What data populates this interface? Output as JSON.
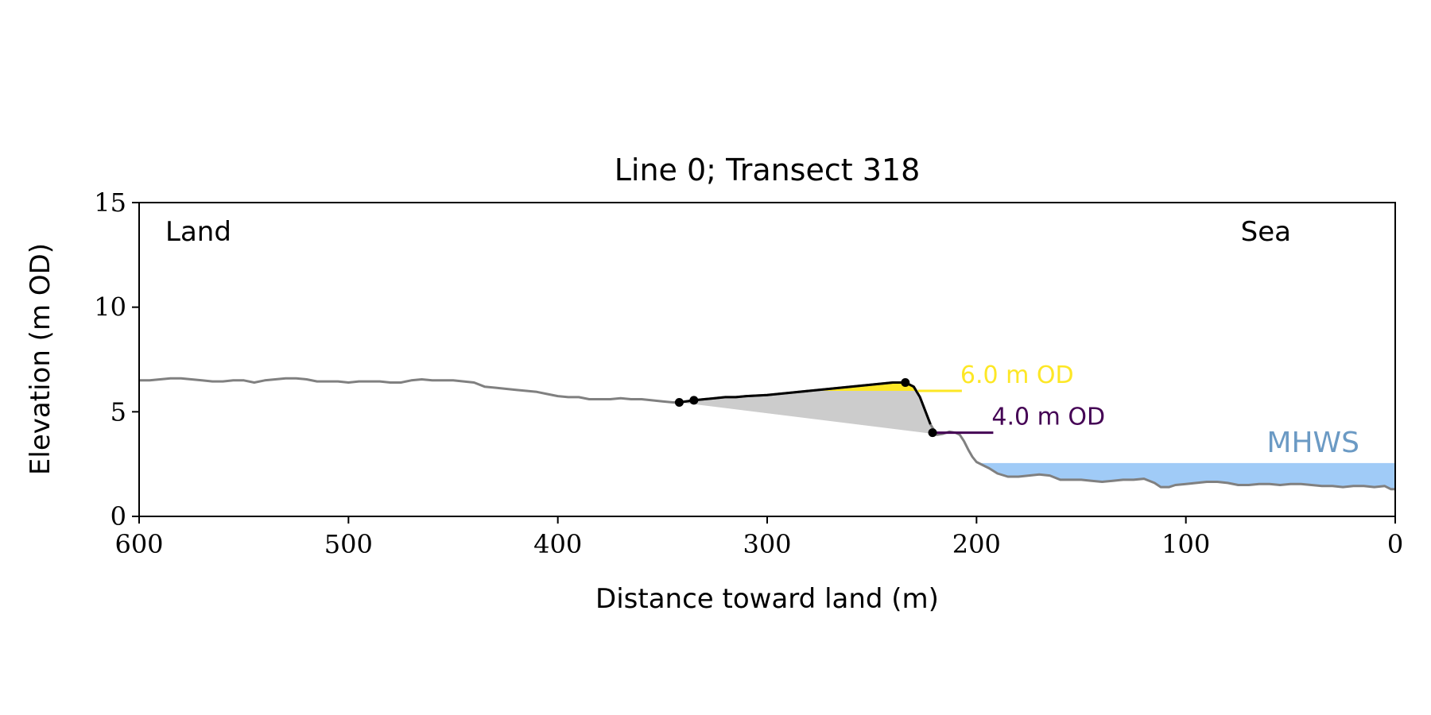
{
  "chart_data": {
    "type": "line",
    "title": "Line 0; Transect 318",
    "xlabel": "Distance toward land (m)",
    "ylabel": "Elevation (m OD)",
    "xlim": [
      600,
      0
    ],
    "ylim": [
      0,
      15
    ],
    "x_ticks": [
      600,
      500,
      400,
      300,
      200,
      100,
      0
    ],
    "y_ticks": [
      0,
      5,
      10,
      15
    ],
    "grid": false,
    "corner_labels": {
      "left": "Land",
      "right": "Sea"
    },
    "colors": {
      "profile": "#808080",
      "dune": "#000000",
      "dune_fill": "#cccccc",
      "above_6m_fill": "#fde725",
      "level_6m": "#fde725",
      "level_4m": "#440154",
      "mhws_fill": "#a0cbf7",
      "mhws_text": "#6b9ac4"
    },
    "profile": {
      "x": [
        600,
        595,
        590,
        585,
        580,
        575,
        570,
        565,
        560,
        555,
        550,
        545,
        540,
        535,
        530,
        525,
        520,
        515,
        510,
        505,
        500,
        495,
        490,
        485,
        480,
        475,
        470,
        465,
        460,
        455,
        450,
        445,
        440,
        435,
        430,
        425,
        420,
        415,
        410,
        405,
        400,
        395,
        390,
        385,
        380,
        375,
        370,
        365,
        360,
        355,
        350,
        345,
        342,
        335,
        330,
        325,
        320,
        315,
        310,
        300,
        290,
        280,
        270,
        260,
        250,
        240,
        234,
        230,
        227,
        222,
        219,
        216,
        213,
        210,
        208,
        206,
        204,
        202,
        200,
        197,
        194,
        190,
        185,
        180,
        175,
        170,
        165,
        160,
        155,
        150,
        145,
        140,
        135,
        130,
        125,
        120,
        115,
        112,
        108,
        105,
        100,
        95,
        90,
        85,
        80,
        75,
        70,
        65,
        60,
        55,
        50,
        45,
        40,
        35,
        30,
        25,
        20,
        15,
        10,
        5,
        2,
        0
      ],
      "y": [
        6.5,
        6.5,
        6.55,
        6.6,
        6.6,
        6.55,
        6.5,
        6.45,
        6.45,
        6.5,
        6.5,
        6.4,
        6.5,
        6.55,
        6.6,
        6.6,
        6.55,
        6.45,
        6.45,
        6.45,
        6.4,
        6.45,
        6.45,
        6.45,
        6.4,
        6.4,
        6.5,
        6.55,
        6.5,
        6.5,
        6.5,
        6.45,
        6.4,
        6.2,
        6.15,
        6.1,
        6.05,
        6.0,
        5.95,
        5.85,
        5.75,
        5.7,
        5.7,
        5.6,
        5.6,
        5.6,
        5.65,
        5.6,
        5.6,
        5.55,
        5.5,
        5.45,
        5.45,
        5.55,
        5.6,
        5.65,
        5.7,
        5.7,
        5.75,
        5.8,
        5.9,
        6.0,
        6.1,
        6.2,
        6.3,
        6.4,
        6.4,
        6.2,
        5.7,
        4.4,
        3.9,
        3.95,
        4.05,
        4.0,
        3.9,
        3.6,
        3.2,
        2.85,
        2.6,
        2.45,
        2.3,
        2.05,
        1.9,
        1.9,
        1.95,
        2.0,
        1.95,
        1.75,
        1.75,
        1.75,
        1.7,
        1.65,
        1.7,
        1.75,
        1.75,
        1.8,
        1.6,
        1.4,
        1.4,
        1.5,
        1.55,
        1.6,
        1.65,
        1.65,
        1.6,
        1.5,
        1.5,
        1.55,
        1.55,
        1.5,
        1.55,
        1.55,
        1.5,
        1.45,
        1.45,
        1.4,
        1.45,
        1.45,
        1.4,
        1.45,
        1.3,
        1.3
      ]
    },
    "dune_crest_line": {
      "x": [
        342,
        335,
        330,
        325,
        320,
        315,
        310,
        300,
        290,
        280,
        270,
        260,
        250,
        240,
        234,
        230,
        227,
        222
      ],
      "y": [
        5.45,
        5.55,
        5.6,
        5.65,
        5.7,
        5.7,
        5.75,
        5.8,
        5.9,
        6.0,
        6.1,
        6.2,
        6.3,
        6.4,
        6.4,
        6.2,
        5.7,
        4.4
      ]
    },
    "markers": {
      "x": [
        342,
        335,
        234,
        221
      ],
      "y": [
        5.45,
        5.55,
        6.4,
        4.0
      ]
    },
    "dune_toe_line": {
      "x": [
        342,
        221
      ],
      "y": [
        5.45,
        3.95
      ]
    },
    "level_lines": [
      {
        "label": "6.0 m OD",
        "y": 6.0,
        "x_start": 228,
        "x_end": 207
      },
      {
        "label": "4.0 m OD",
        "y": 4.0,
        "x_start": 220,
        "x_end": 192
      }
    ],
    "mhws": {
      "label": "MHWS",
      "y": 2.55,
      "x_start": 200,
      "x_end": 0
    }
  }
}
